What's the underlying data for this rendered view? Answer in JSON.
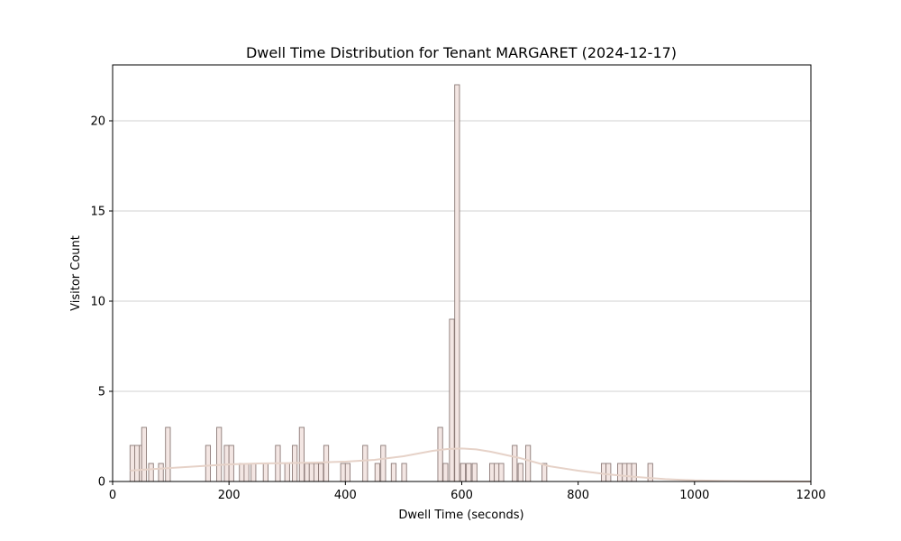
{
  "chart_data": {
    "type": "bar",
    "title": "Dwell Time Distribution for Tenant MARGARET (2024-12-17)",
    "xlabel": "Dwell Time (seconds)",
    "ylabel": "Visitor Count",
    "xlim": [
      0,
      1200
    ],
    "ylim": [
      0,
      23.1
    ],
    "xticks": [
      0,
      200,
      400,
      600,
      800,
      1000,
      1200
    ],
    "yticks": [
      0,
      5,
      10,
      15,
      20
    ],
    "grid": "y-major",
    "bin_width": 8.2,
    "bars": [
      {
        "x": 34,
        "count": 2
      },
      {
        "x": 42,
        "count": 2
      },
      {
        "x": 50,
        "count": 2
      },
      {
        "x": 54,
        "count": 3
      },
      {
        "x": 66,
        "count": 1
      },
      {
        "x": 83,
        "count": 1
      },
      {
        "x": 95,
        "count": 3
      },
      {
        "x": 164,
        "count": 2
      },
      {
        "x": 183,
        "count": 3
      },
      {
        "x": 196,
        "count": 2
      },
      {
        "x": 204,
        "count": 2
      },
      {
        "x": 222,
        "count": 1
      },
      {
        "x": 230,
        "count": 1
      },
      {
        "x": 242,
        "count": 1
      },
      {
        "x": 263,
        "count": 1
      },
      {
        "x": 284,
        "count": 2
      },
      {
        "x": 300,
        "count": 1
      },
      {
        "x": 313,
        "count": 2
      },
      {
        "x": 325,
        "count": 3
      },
      {
        "x": 334,
        "count": 1
      },
      {
        "x": 342,
        "count": 1
      },
      {
        "x": 350,
        "count": 1
      },
      {
        "x": 358,
        "count": 1
      },
      {
        "x": 367,
        "count": 2
      },
      {
        "x": 396,
        "count": 1
      },
      {
        "x": 404,
        "count": 1
      },
      {
        "x": 434,
        "count": 2
      },
      {
        "x": 455,
        "count": 1
      },
      {
        "x": 465,
        "count": 2
      },
      {
        "x": 483,
        "count": 1
      },
      {
        "x": 501,
        "count": 1
      },
      {
        "x": 563,
        "count": 3
      },
      {
        "x": 572,
        "count": 1
      },
      {
        "x": 583,
        "count": 9
      },
      {
        "x": 592,
        "count": 22
      },
      {
        "x": 602,
        "count": 1
      },
      {
        "x": 612,
        "count": 1
      },
      {
        "x": 622,
        "count": 1
      },
      {
        "x": 652,
        "count": 1
      },
      {
        "x": 660,
        "count": 1
      },
      {
        "x": 668,
        "count": 1
      },
      {
        "x": 691,
        "count": 2
      },
      {
        "x": 701,
        "count": 1
      },
      {
        "x": 714,
        "count": 2
      },
      {
        "x": 742,
        "count": 1
      },
      {
        "x": 844,
        "count": 1
      },
      {
        "x": 852,
        "count": 1
      },
      {
        "x": 872,
        "count": 1
      },
      {
        "x": 880,
        "count": 1
      },
      {
        "x": 888,
        "count": 1
      },
      {
        "x": 896,
        "count": 1
      },
      {
        "x": 924,
        "count": 1
      }
    ],
    "kde": {
      "x": [
        30,
        50,
        100,
        150,
        200,
        250,
        300,
        350,
        400,
        450,
        500,
        550,
        575,
        600,
        625,
        650,
        700,
        750,
        800,
        850,
        900,
        950,
        1000,
        1050,
        1100,
        1150,
        1200
      ],
      "y": [
        0.6,
        0.65,
        0.75,
        0.85,
        0.95,
        1.0,
        1.02,
        1.05,
        1.1,
        1.2,
        1.4,
        1.7,
        1.8,
        1.83,
        1.78,
        1.65,
        1.3,
        0.85,
        0.6,
        0.4,
        0.25,
        0.13,
        0.06,
        0.03,
        0.01,
        0.005,
        0.0
      ]
    },
    "colors": {
      "bar_fill": "#f3e6e3",
      "bar_edge": "#8c7a77",
      "kde_line": "#e6d2c8",
      "grid": "#c0c0c0"
    }
  }
}
